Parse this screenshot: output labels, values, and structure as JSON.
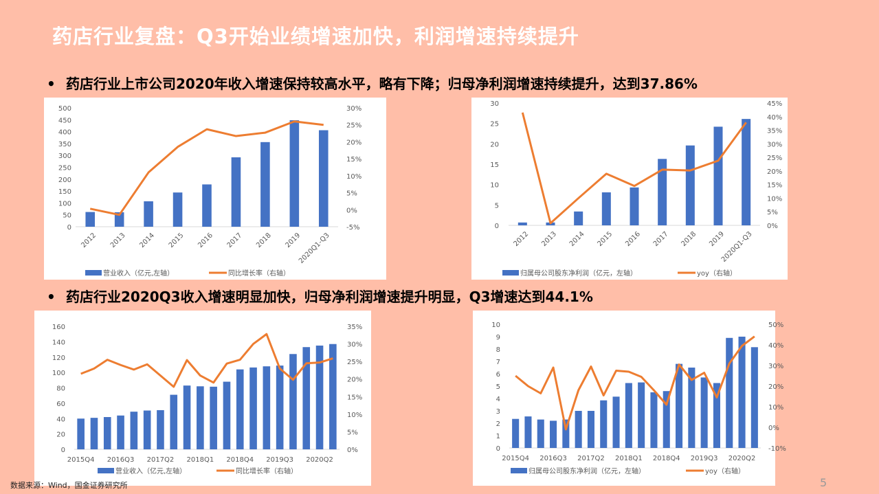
{
  "title": "药店行业复盘：Q3开始业绩增速加快，利润增速持续提升",
  "bullets": [
    "药店行业上市公司2020年收入增速保持较高水平，略有下降；归母净利润增速持续提升，达到37.86%",
    "药店行业2020Q3收入增速明显加快，归母净利润增速提升明显，Q3增速达到44.1%"
  ],
  "source": "数据来源：Wind，国金证券研究所",
  "page_number": "5",
  "colors": {
    "bar": "#4472c4",
    "line": "#ed7d31",
    "background": "#ffbea8"
  },
  "chart_data": [
    {
      "type": "bar+line",
      "categories": [
        "2012",
        "2013",
        "2014",
        "2015",
        "2016",
        "2017",
        "2018",
        "2019",
        "2020Q1-Q3"
      ],
      "series": [
        {
          "name": "营业收入（亿元,左轴）",
          "type": "bar",
          "axis": "left",
          "values": [
            62,
            61,
            107,
            144,
            178,
            292,
            356,
            448,
            406
          ]
        },
        {
          "name": "同比增长率（右轴）",
          "type": "line",
          "axis": "right",
          "values": [
            0.3,
            -1.5,
            11,
            18.5,
            23.7,
            21.7,
            22.7,
            26,
            25
          ]
        }
      ],
      "left_ylim": [
        0,
        500
      ],
      "left_ticks": [
        0,
        50,
        100,
        150,
        200,
        250,
        300,
        350,
        400,
        450,
        500
      ],
      "right_ylim": [
        -5,
        30
      ],
      "right_ticks": [
        "-5%",
        "0%",
        "5%",
        "10%",
        "15%",
        "20%",
        "25%",
        "30%"
      ],
      "xlabels_rotated": true,
      "legend": "bottom"
    },
    {
      "type": "bar+line",
      "categories": [
        "2012",
        "2013",
        "2014",
        "2015",
        "2016",
        "2017",
        "2018",
        "2019",
        "2020Q1-Q3"
      ],
      "series": [
        {
          "name": "归属母公司股东净利润（亿元，左轴）",
          "type": "bar",
          "axis": "left",
          "values": [
            0.7,
            0.7,
            3.4,
            8.1,
            9.3,
            16.3,
            19.6,
            24.2,
            26.1
          ]
        },
        {
          "name": "yoy（右轴）",
          "type": "line",
          "axis": "right",
          "values": [
            41.5,
            0.8,
            10,
            19,
            14.5,
            20.5,
            20.2,
            23.8,
            37.86
          ]
        }
      ],
      "left_ylim": [
        0,
        30
      ],
      "left_ticks": [
        0,
        5,
        10,
        15,
        20,
        25,
        30
      ],
      "right_ylim": [
        0,
        45
      ],
      "right_ticks": [
        "0%",
        "5%",
        "10%",
        "15%",
        "20%",
        "25%",
        "30%",
        "35%",
        "40%",
        "45%"
      ],
      "xlabels_rotated": true,
      "legend": "bottom"
    },
    {
      "type": "bar+line",
      "categories": [
        "2015Q4",
        "2016Q1",
        "2016Q2",
        "2016Q3",
        "2016Q4",
        "2017Q1",
        "2017Q2",
        "2017Q3",
        "2017Q4",
        "2018Q1",
        "2018Q2",
        "2018Q3",
        "2018Q4",
        "2019Q1",
        "2019Q2",
        "2019Q3",
        "2019Q4",
        "2020Q1",
        "2020Q2",
        "2020Q3"
      ],
      "xtick_labels": [
        "2015Q4",
        "2016Q3",
        "2017Q2",
        "2018Q1",
        "2018Q4",
        "2019Q3",
        "2020Q2"
      ],
      "series": [
        {
          "name": "营业收入（亿元,左轴）",
          "type": "bar",
          "axis": "left",
          "values": [
            40,
            41,
            42,
            44,
            49,
            50.5,
            51,
            71,
            83,
            82,
            81.5,
            88,
            104,
            106.5,
            108,
            109,
            124,
            133,
            135,
            137
          ]
        },
        {
          "name": "同比增长率（右轴）",
          "type": "line",
          "axis": "right",
          "values": [
            21.5,
            23,
            25.5,
            24,
            22.7,
            24.2,
            21,
            17.8,
            25.4,
            21,
            19,
            24.4,
            25.5,
            30,
            32.8,
            23,
            19.8,
            24.5,
            24.7,
            25.9
          ]
        }
      ],
      "left_ylim": [
        0,
        160
      ],
      "left_ticks": [
        0,
        20,
        40,
        60,
        80,
        100,
        120,
        140,
        160
      ],
      "right_ylim": [
        0,
        35
      ],
      "right_ticks": [
        "0%",
        "5%",
        "10%",
        "15%",
        "20%",
        "25%",
        "30%",
        "35%"
      ],
      "xlabels_rotated": false,
      "legend": "bottom"
    },
    {
      "type": "bar+line",
      "categories": [
        "2015Q4",
        "2016Q1",
        "2016Q2",
        "2016Q3",
        "2016Q4",
        "2017Q1",
        "2017Q2",
        "2017Q3",
        "2017Q4",
        "2018Q1",
        "2018Q2",
        "2018Q3",
        "2018Q4",
        "2019Q1",
        "2019Q2",
        "2019Q3",
        "2019Q4",
        "2020Q1",
        "2020Q2",
        "2020Q3"
      ],
      "xtick_labels": [
        "2015Q4",
        "2016Q3",
        "2017Q2",
        "2018Q1",
        "2018Q4",
        "2019Q3",
        "2020Q2"
      ],
      "series": [
        {
          "name": "归属母公司股东净利润（亿元，左轴）",
          "type": "bar",
          "axis": "left",
          "values": [
            2.35,
            2.55,
            2.3,
            2.2,
            2.3,
            3.0,
            3.0,
            3.85,
            4.15,
            5.25,
            5.3,
            4.5,
            4.6,
            6.8,
            6.5,
            5.7,
            5.25,
            8.9,
            9.0,
            8.15
          ]
        },
        {
          "name": "yoy（右轴）",
          "type": "line",
          "axis": "right",
          "values": [
            25,
            20,
            16.5,
            29,
            -1,
            18,
            29.5,
            15.5,
            27.5,
            27,
            24.5,
            18,
            11,
            30.5,
            23,
            26.5,
            14.5,
            31,
            39.5,
            44.1
          ]
        }
      ],
      "left_ylim": [
        0,
        10
      ],
      "left_ticks": [
        0,
        1,
        2,
        3,
        4,
        5,
        6,
        7,
        8,
        9,
        10
      ],
      "right_ylim": [
        -10,
        50
      ],
      "right_ticks": [
        "-10%",
        "0%",
        "10%",
        "20%",
        "30%",
        "40%",
        "50%"
      ],
      "xlabels_rotated": false,
      "legend": "bottom"
    }
  ]
}
